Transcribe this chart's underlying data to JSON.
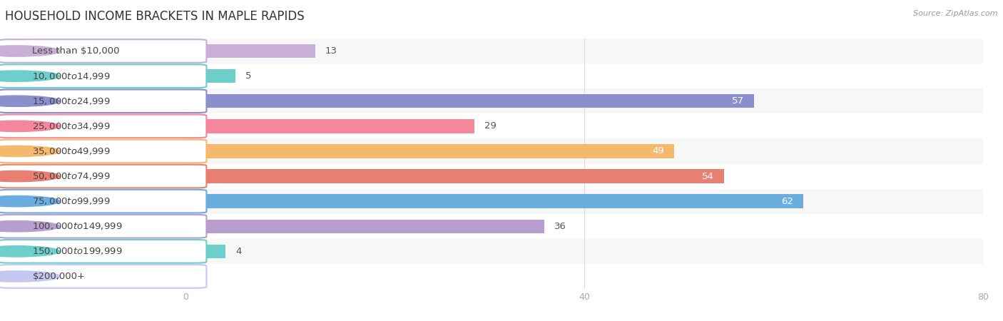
{
  "title": "HOUSEHOLD INCOME BRACKETS IN MAPLE RAPIDS",
  "source": "Source: ZipAtlas.com",
  "categories": [
    "Less than $10,000",
    "$10,000 to $14,999",
    "$15,000 to $24,999",
    "$25,000 to $34,999",
    "$35,000 to $49,999",
    "$50,000 to $74,999",
    "$75,000 to $99,999",
    "$100,000 to $149,999",
    "$150,000 to $199,999",
    "$200,000+"
  ],
  "values": [
    13,
    5,
    57,
    29,
    49,
    54,
    62,
    36,
    4,
    0
  ],
  "bar_colors": [
    "#c9aed6",
    "#6ececa",
    "#8b8fcc",
    "#f4879c",
    "#f5b96e",
    "#e87f72",
    "#6aaee0",
    "#b89ece",
    "#6ececa",
    "#c5c8f0"
  ],
  "xlim": [
    0,
    80
  ],
  "xticks": [
    0,
    40,
    80
  ],
  "background_color": "#ffffff",
  "row_bg_colors": [
    "#f7f7f7",
    "#ffffff"
  ],
  "title_fontsize": 12,
  "label_fontsize": 9.5,
  "value_fontsize": 9.5,
  "bar_height": 0.55
}
